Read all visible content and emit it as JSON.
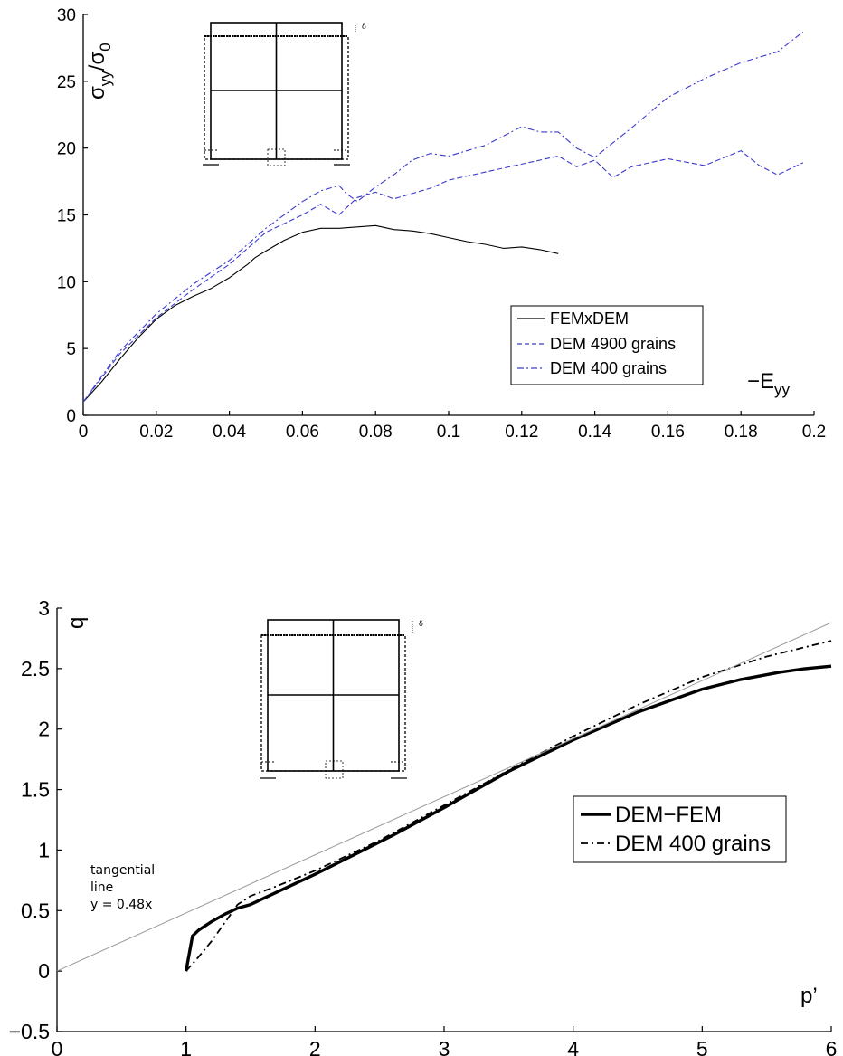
{
  "chart_data": [
    {
      "type": "line",
      "title": "",
      "ylabel": "σ_yy/σ_0",
      "ylabel_parts": {
        "main": "σ",
        "sub1": "yy",
        "mid": "/σ",
        "sub2": "0"
      },
      "xlabel": "−E_yy",
      "xlabel_parts": {
        "main": "−E",
        "sub": "yy"
      },
      "xlim": [
        0,
        0.2
      ],
      "ylim": [
        0,
        30
      ],
      "xticks": [
        0,
        0.02,
        0.04,
        0.06,
        0.08,
        0.1,
        0.12,
        0.14,
        0.16,
        0.18,
        0.2
      ],
      "xtick_labels": [
        "0",
        "0.02",
        "0.04",
        "0.06",
        "0.08",
        "0.1",
        "0.12",
        "0.14",
        "0.16",
        "0.18",
        "0.2"
      ],
      "yticks": [
        0,
        5,
        10,
        15,
        20,
        25,
        30
      ],
      "ytick_labels": [
        "0",
        "5",
        "10",
        "15",
        "20",
        "25",
        "30"
      ],
      "grid": false,
      "legend_position": "lower-right",
      "series": [
        {
          "name": "FEMxDEM",
          "color": "#000000",
          "style": "solid",
          "x": [
            0,
            0.005,
            0.01,
            0.015,
            0.02,
            0.025,
            0.03,
            0.035,
            0.04,
            0.045,
            0.047,
            0.05,
            0.055,
            0.06,
            0.065,
            0.07,
            0.075,
            0.08,
            0.085,
            0.09,
            0.095,
            0.1,
            0.105,
            0.11,
            0.115,
            0.12,
            0.125,
            0.13
          ],
          "y": [
            1.0,
            2.5,
            4.2,
            5.8,
            7.2,
            8.2,
            8.9,
            9.5,
            10.3,
            11.3,
            11.8,
            12.3,
            13.1,
            13.7,
            14.0,
            14.0,
            14.1,
            14.2,
            13.9,
            13.8,
            13.6,
            13.3,
            13.0,
            12.8,
            12.5,
            12.6,
            12.4,
            12.1
          ]
        },
        {
          "name": "DEM 4900 grains",
          "color": "#3a3acf",
          "style": "dashed",
          "x": [
            0,
            0.01,
            0.02,
            0.03,
            0.04,
            0.05,
            0.06,
            0.065,
            0.07,
            0.075,
            0.08,
            0.085,
            0.09,
            0.095,
            0.1,
            0.11,
            0.12,
            0.13,
            0.135,
            0.14,
            0.145,
            0.15,
            0.16,
            0.17,
            0.18,
            0.185,
            0.19,
            0.197
          ],
          "y": [
            1.0,
            4.6,
            7.3,
            9.4,
            11.3,
            13.7,
            15.0,
            15.8,
            15.0,
            16.3,
            16.7,
            16.2,
            16.6,
            17.0,
            17.6,
            18.2,
            18.8,
            19.4,
            18.6,
            19.1,
            17.8,
            18.6,
            19.2,
            18.7,
            19.8,
            18.7,
            18.0,
            18.9
          ]
        },
        {
          "name": "DEM 400 grains",
          "color": "#3a3acf",
          "style": "dashdot",
          "x": [
            0,
            0.01,
            0.02,
            0.03,
            0.04,
            0.05,
            0.06,
            0.065,
            0.07,
            0.072,
            0.075,
            0.08,
            0.085,
            0.09,
            0.095,
            0.1,
            0.11,
            0.12,
            0.125,
            0.13,
            0.135,
            0.14,
            0.15,
            0.16,
            0.17,
            0.18,
            0.19,
            0.197
          ],
          "y": [
            1.0,
            4.8,
            7.6,
            9.8,
            11.6,
            14.0,
            16.0,
            16.8,
            17.2,
            16.6,
            16.0,
            17.1,
            18.0,
            19.1,
            19.6,
            19.4,
            20.2,
            21.6,
            21.2,
            21.2,
            20.0,
            19.3,
            21.5,
            23.8,
            25.2,
            26.4,
            27.2,
            28.7
          ]
        }
      ]
    },
    {
      "type": "line",
      "title": "",
      "ylabel": "q",
      "xlabel": "p’",
      "xlim": [
        0,
        6
      ],
      "ylim": [
        -0.5,
        3
      ],
      "xticks": [
        0,
        1,
        2,
        3,
        4,
        5,
        6
      ],
      "xtick_labels": [
        "0",
        "1",
        "2",
        "3",
        "4",
        "5",
        "6"
      ],
      "yticks": [
        -0.5,
        0,
        0.5,
        1,
        1.5,
        2,
        2.5,
        3
      ],
      "ytick_labels": [
        "−0.5",
        "0",
        "0.5",
        "1",
        "1.5",
        "2",
        "2.5",
        "3"
      ],
      "grid": false,
      "legend_position": "center-right",
      "annotation": [
        "tangential",
        "line",
        "y = 0.48x"
      ],
      "series": [
        {
          "name": "DEM−FEM",
          "color": "#000000",
          "style": "solid-thick",
          "x": [
            1.0,
            1.05,
            1.1,
            1.2,
            1.3,
            1.4,
            1.5,
            1.7,
            2.0,
            2.3,
            2.6,
            3.0,
            3.5,
            4.0,
            4.5,
            5.0,
            5.3,
            5.6,
            5.8,
            6.0
          ],
          "y": [
            0,
            0.29,
            0.34,
            0.41,
            0.47,
            0.52,
            0.55,
            0.65,
            0.8,
            0.96,
            1.12,
            1.35,
            1.65,
            1.91,
            2.14,
            2.33,
            2.41,
            2.47,
            2.5,
            2.52
          ]
        },
        {
          "name": "DEM 400 grains",
          "color": "#000000",
          "style": "dashdot",
          "x": [
            1.0,
            1.1,
            1.2,
            1.3,
            1.4,
            1.5,
            1.7,
            2.0,
            2.5,
            3.0,
            3.5,
            4.0,
            4.5,
            5.0,
            5.5,
            6.0
          ],
          "y": [
            0,
            0.12,
            0.25,
            0.4,
            0.55,
            0.62,
            0.7,
            0.83,
            1.08,
            1.37,
            1.66,
            1.94,
            2.2,
            2.43,
            2.6,
            2.73
          ]
        },
        {
          "name": "",
          "color": "#9a9a9a",
          "style": "solid-thin",
          "x": [
            0,
            6
          ],
          "y": [
            0,
            2.88
          ]
        }
      ]
    }
  ]
}
